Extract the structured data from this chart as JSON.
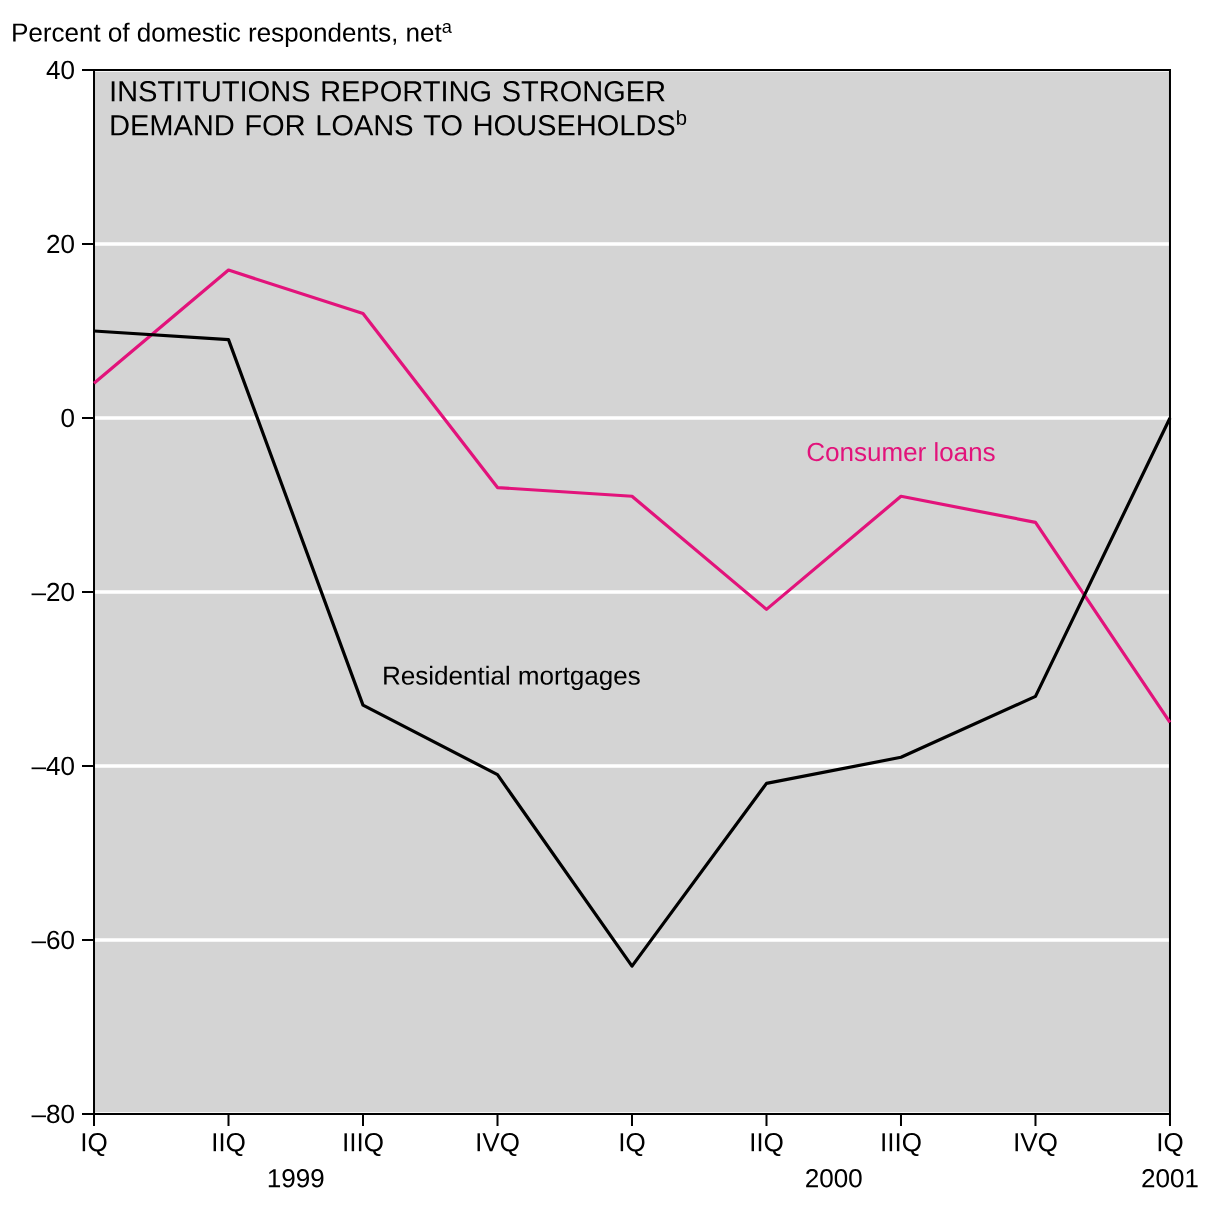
{
  "chart_data": {
    "type": "line",
    "title": "INSTITUTIONS REPORTING STRONGER DEMAND FOR LOANS TO HOUSEHOLDS$^{b}$",
    "ylabel": "Percent of domestic respondents, net$^{a}$",
    "categories": [
      "IQ",
      "IIQ",
      "IIIQ",
      "IVQ",
      "IQ",
      "IIQ",
      "IIIQ",
      "IVQ",
      "IQ"
    ],
    "annotations": [
      "1999",
      "2000",
      "2001"
    ],
    "series": [
      {
        "name": "Consumer loans",
        "color": "#e2137b",
        "values": [
          4,
          17,
          12,
          -8,
          -9,
          -22,
          -9,
          -12,
          -35
        ]
      },
      {
        "name": "Residential mortgages",
        "color": "#000000",
        "values": [
          10,
          9,
          -33,
          -41,
          -63,
          -42,
          -39,
          -32,
          0
        ]
      }
    ],
    "ylim": [
      -80,
      40
    ],
    "yticks": [
      {
        "value": -80,
        "label": "–80"
      },
      {
        "value": -60,
        "label": "–60"
      },
      {
        "value": -40,
        "label": "–40"
      },
      {
        "value": -20,
        "label": "–20"
      },
      0,
      20,
      40
    ],
    "grid": "y",
    "marker": "none",
    "line_style": "solid"
  }
}
